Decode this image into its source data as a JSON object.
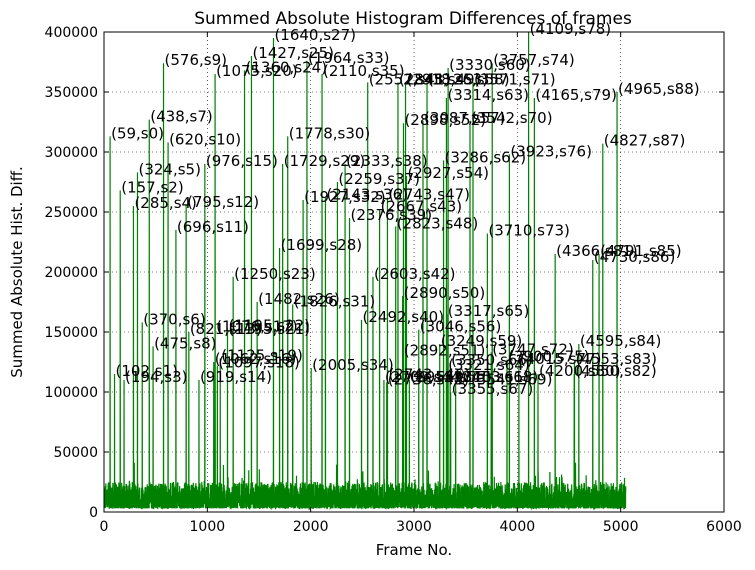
{
  "chart_data": {
    "type": "line",
    "title": "Summed Absolute Histogram Differences of frames",
    "xlabel": "Frame No.",
    "ylabel": "Summed Absolute Hist. Diff.",
    "xlim": [
      0,
      6000
    ],
    "ylim": [
      0,
      400000
    ],
    "xticks": [
      0,
      1000,
      2000,
      3000,
      4000,
      5000,
      6000
    ],
    "yticks": [
      0,
      50000,
      100000,
      150000,
      200000,
      250000,
      300000,
      350000,
      400000
    ],
    "grid": true,
    "line_color": "#008000",
    "frame_count": 5050,
    "baseline_noise": [
      3000,
      25000
    ],
    "peaks": [
      {
        "frame": 59,
        "value": 313000,
        "label": "(59,s0)"
      },
      {
        "frame": 102,
        "value": 115000,
        "label": "(102,s1)"
      },
      {
        "frame": 157,
        "value": 268000,
        "label": "(157,s2)"
      },
      {
        "frame": 194,
        "value": 110000,
        "label": "(194,s3)"
      },
      {
        "frame": 285,
        "value": 255000,
        "label": "(285,s4)"
      },
      {
        "frame": 324,
        "value": 283000,
        "label": "(324,s5)"
      },
      {
        "frame": 370,
        "value": 158000,
        "label": "(370,s6)"
      },
      {
        "frame": 438,
        "value": 327000,
        "label": "(438,s7)"
      },
      {
        "frame": 475,
        "value": 138000,
        "label": "(475,s8)"
      },
      {
        "frame": 576,
        "value": 374000,
        "label": "(576,s9)"
      },
      {
        "frame": 620,
        "value": 308000,
        "label": "(620,s10)"
      },
      {
        "frame": 696,
        "value": 235000,
        "label": "(696,s11)"
      },
      {
        "frame": 795,
        "value": 256000,
        "label": "(795,s12)"
      },
      {
        "frame": 821,
        "value": 150000,
        "label": "(821,s13)"
      },
      {
        "frame": 919,
        "value": 110000,
        "label": "(919,s14)"
      },
      {
        "frame": 976,
        "value": 290000,
        "label": "(976,s15)"
      },
      {
        "frame": 1062,
        "value": 125000,
        "label": "(1062,s16)"
      },
      {
        "frame": 1076,
        "value": 152000,
        "label": "(1076,s17)"
      },
      {
        "frame": 1097,
        "value": 122000,
        "label": "(1097,s18)"
      },
      {
        "frame": 1125,
        "value": 128000,
        "label": "(1125,s19)"
      },
      {
        "frame": 1075,
        "value": 365000,
        "label": "(1075,s20)"
      },
      {
        "frame": 1195,
        "value": 150000,
        "label": "(1195,s21)"
      },
      {
        "frame": 1195,
        "value": 153000,
        "label": "(1195,s22)"
      },
      {
        "frame": 1250,
        "value": 196000,
        "label": "(1250,s23)"
      },
      {
        "frame": 1360,
        "value": 368000,
        "label": "(1360,s24)"
      },
      {
        "frame": 1427,
        "value": 380000,
        "label": "(1427,s25)"
      },
      {
        "frame": 1482,
        "value": 175000,
        "label": "(1482,s26)"
      },
      {
        "frame": 1640,
        "value": 395000,
        "label": "(1640,s27)"
      },
      {
        "frame": 1699,
        "value": 220000,
        "label": "(1699,s28)"
      },
      {
        "frame": 1729,
        "value": 290000,
        "label": "(1729,s29)"
      },
      {
        "frame": 1778,
        "value": 313000,
        "label": "(1778,s30)"
      },
      {
        "frame": 1826,
        "value": 173000,
        "label": "(1826,s31)"
      },
      {
        "frame": 1927,
        "value": 260000,
        "label": "(1927,s32)"
      },
      {
        "frame": 1964,
        "value": 376000,
        "label": "(1964,s33)"
      },
      {
        "frame": 2005,
        "value": 120000,
        "label": "(2005,s34)"
      },
      {
        "frame": 2110,
        "value": 365000,
        "label": "(2110,s35)"
      },
      {
        "frame": 2143,
        "value": 262000,
        "label": "(2143,s36)"
      },
      {
        "frame": 2259,
        "value": 275000,
        "label": "(2259,s37)"
      },
      {
        "frame": 2333,
        "value": 290000,
        "label": "(2333,s38)"
      },
      {
        "frame": 2376,
        "value": 245000,
        "label": "(2376,s39)"
      },
      {
        "frame": 2492,
        "value": 160000,
        "label": "(2492,s40)"
      },
      {
        "frame": 2552,
        "value": 358000,
        "label": "(2552,s41)"
      },
      {
        "frame": 2603,
        "value": 196000,
        "label": "(2603,s42)"
      },
      {
        "frame": 2667,
        "value": 252000,
        "label": "(2667,s43)"
      },
      {
        "frame": 2709,
        "value": 110000,
        "label": "(2709,s44)"
      },
      {
        "frame": 2736,
        "value": 108000,
        "label": "(2736,s45)"
      },
      {
        "frame": 2743,
        "value": 112000,
        "label": "(2743,s46)"
      },
      {
        "frame": 2743,
        "value": 262000,
        "label": "(2743,s47)"
      },
      {
        "frame": 2823,
        "value": 238000,
        "label": "(2823,s48)"
      },
      {
        "frame": 2845,
        "value": 358000,
        "label": "(2845,s49)"
      },
      {
        "frame": 2890,
        "value": 180000,
        "label": "(2890,s50)"
      },
      {
        "frame": 2892,
        "value": 132000,
        "label": "(2892,s51)"
      },
      {
        "frame": 2898,
        "value": 324000,
        "label": "(2898,s52)"
      },
      {
        "frame": 2918,
        "value": 358000,
        "label": "(2918,s53)"
      },
      {
        "frame": 2927,
        "value": 280000,
        "label": "(2927,s54)"
      },
      {
        "frame": 2955,
        "value": 110000,
        "label": "(2955,s55)"
      },
      {
        "frame": 3046,
        "value": 152000,
        "label": "(3046,s56)"
      },
      {
        "frame": 3087,
        "value": 326000,
        "label": "(3087,s57)"
      },
      {
        "frame": 3126,
        "value": 358000,
        "label": "(3126,s58)"
      },
      {
        "frame": 3249,
        "value": 140000,
        "label": "(3249,s59)"
      },
      {
        "frame": 3330,
        "value": 370000,
        "label": "(3330,s60)"
      },
      {
        "frame": 3315,
        "value": 110000,
        "label": "(3315,s61)"
      },
      {
        "frame": 3286,
        "value": 293000,
        "label": "(3286,s62)"
      },
      {
        "frame": 3314,
        "value": 345000,
        "label": "(3314,s63)"
      },
      {
        "frame": 3321,
        "value": 120000,
        "label": "(3321,s64)"
      },
      {
        "frame": 3317,
        "value": 165000,
        "label": "(3317,s65)"
      },
      {
        "frame": 3350,
        "value": 124000,
        "label": "(3350,s66)"
      },
      {
        "frame": 3355,
        "value": 100000,
        "label": "(3355,s67)"
      },
      {
        "frame": 3403,
        "value": 110000,
        "label": "(3403,s68)"
      },
      {
        "frame": 3541,
        "value": 108000,
        "label": "(3541,s69)"
      },
      {
        "frame": 3542,
        "value": 326000,
        "label": "(3542,s70)"
      },
      {
        "frame": 3571,
        "value": 358000,
        "label": "(3571,s71)"
      },
      {
        "frame": 3747,
        "value": 133000,
        "label": "(3747,s72)"
      },
      {
        "frame": 3710,
        "value": 232000,
        "label": "(3710,s73)"
      },
      {
        "frame": 3757,
        "value": 374000,
        "label": "(3757,s74)"
      },
      {
        "frame": 3900,
        "value": 127000,
        "label": "(3900,s75)"
      },
      {
        "frame": 3923,
        "value": 298000,
        "label": "(3923,s76)"
      },
      {
        "frame": 4015,
        "value": 125000,
        "label": "(4015,s77)"
      },
      {
        "frame": 4109,
        "value": 400000,
        "label": "(4109,s78)"
      },
      {
        "frame": 4165,
        "value": 345000,
        "label": "(4165,s79)"
      },
      {
        "frame": 4200,
        "value": 115000,
        "label": "(4200,s80)"
      },
      {
        "frame": 4366,
        "value": 215000,
        "label": "(4366,s81)"
      },
      {
        "frame": 4550,
        "value": 115000,
        "label": "(4550,s82)"
      },
      {
        "frame": 4553,
        "value": 125000,
        "label": "(4553,s83)"
      },
      {
        "frame": 4595,
        "value": 140000,
        "label": "(4595,s84)"
      },
      {
        "frame": 4791,
        "value": 215000,
        "label": "(4791,s85)"
      },
      {
        "frame": 4730,
        "value": 210000,
        "label": "(4730,s86)"
      },
      {
        "frame": 4827,
        "value": 307000,
        "label": "(4827,s87)"
      },
      {
        "frame": 4965,
        "value": 350000,
        "label": "(4965,s88)"
      }
    ]
  }
}
